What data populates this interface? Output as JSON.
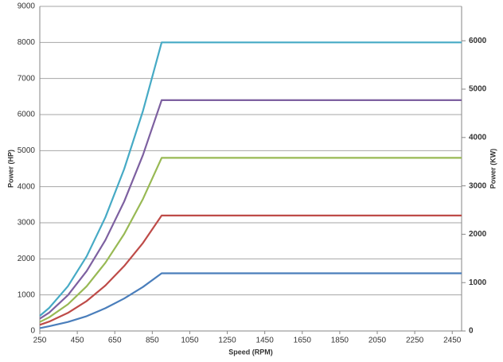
{
  "chart_data": {
    "type": "line",
    "x_label": "Speed (RPM)",
    "y_label": "Power (HP)",
    "y2_label": "Power (KW)",
    "x": [
      250,
      300,
      400,
      500,
      600,
      700,
      800,
      900,
      2500
    ],
    "series": [
      {
        "color": "#4a7ebb",
        "values": [
          80,
          130,
          250,
          410,
          630,
          900,
          1220,
          1600,
          1600
        ]
      },
      {
        "color": "#be4b48",
        "values": [
          170,
          260,
          500,
          830,
          1260,
          1800,
          2440,
          3200,
          3200
        ]
      },
      {
        "color": "#98b954",
        "values": [
          250,
          380,
          740,
          1240,
          1890,
          2690,
          3660,
          4800,
          4800
        ]
      },
      {
        "color": "#7d60a0",
        "values": [
          340,
          510,
          990,
          1660,
          2520,
          3590,
          4880,
          6400,
          6400
        ]
      },
      {
        "color": "#46aac5",
        "values": [
          420,
          640,
          1240,
          2070,
          3150,
          4490,
          6100,
          8000,
          8000
        ]
      }
    ],
    "xlim": [
      250,
      2500
    ],
    "xticks": [
      250,
      450,
      650,
      850,
      1050,
      1250,
      1450,
      1650,
      1850,
      2050,
      2250,
      2450
    ],
    "ylim": [
      0,
      9000
    ],
    "yticks": [
      0,
      1000,
      2000,
      3000,
      4000,
      5000,
      6000,
      7000,
      8000,
      9000
    ],
    "y2lim": [
      0,
      6711
    ],
    "y2ticks": [
      0,
      1000,
      2000,
      3000,
      4000,
      5000,
      6000
    ],
    "grid": true
  }
}
